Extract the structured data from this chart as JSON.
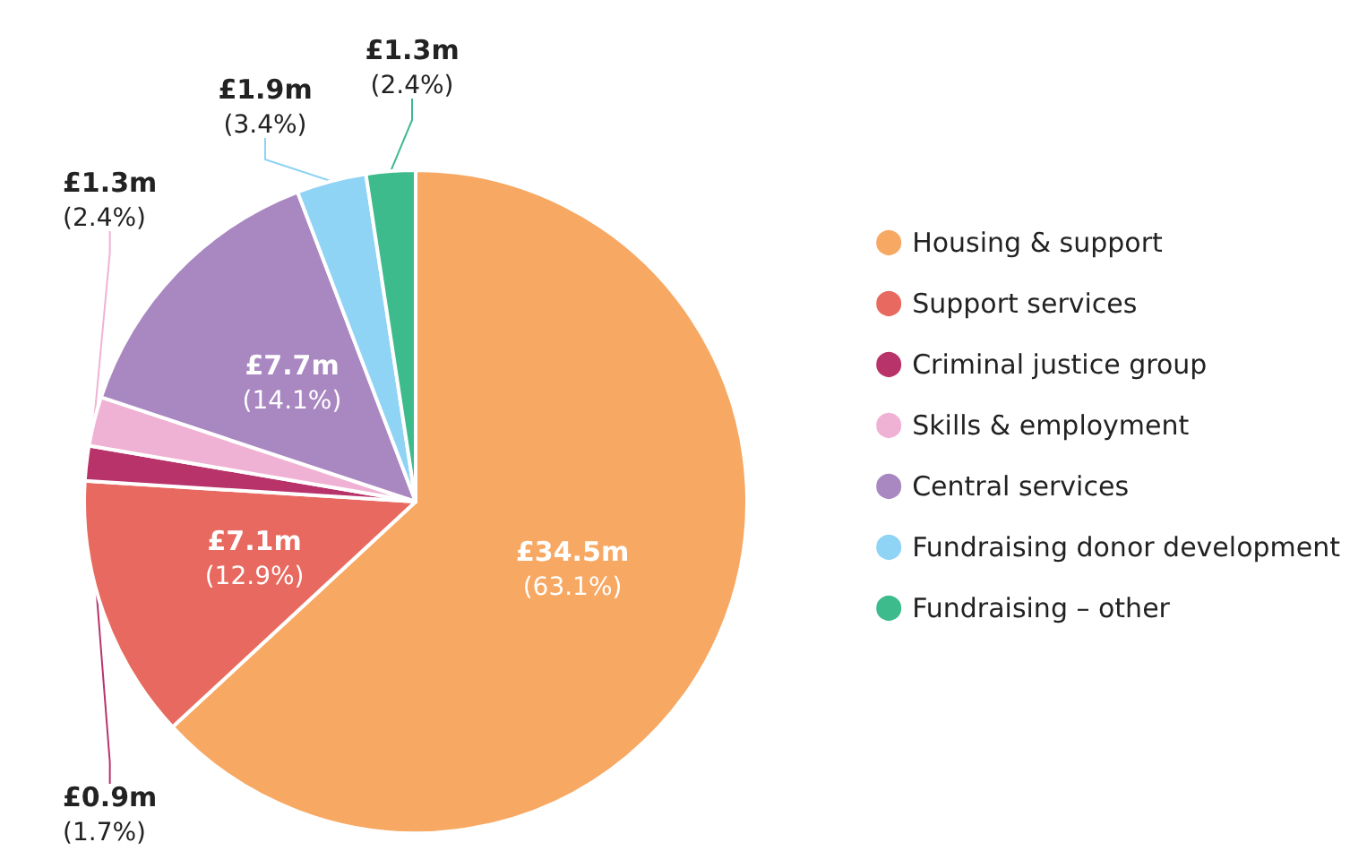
{
  "chart_data": {
    "type": "pie",
    "categories": [
      "Housing & support",
      "Support services",
      "Criminal justice group",
      "Skills & employment",
      "Central services",
      "Fundraising donor development",
      "Fundraising – other"
    ],
    "values": [
      63.1,
      12.9,
      1.7,
      2.4,
      14.1,
      3.4,
      2.4
    ],
    "value_labels": [
      "£34.5m\n(63.1%)",
      "£7.1m\n(12.9%)",
      "£0.9m\n(1.7%)",
      "£1.3m\n(2.4%)",
      "£7.7m\n(14.1%)",
      "£1.9m\n(3.4%)",
      "£1.3m\n(2.4%)"
    ],
    "colors": [
      "#f7a863",
      "#e8695f",
      "#b8336a",
      "#f0b2d4",
      "#a987c1",
      "#8fd3f5",
      "#3dbb8c"
    ],
    "legend": "right"
  }
}
